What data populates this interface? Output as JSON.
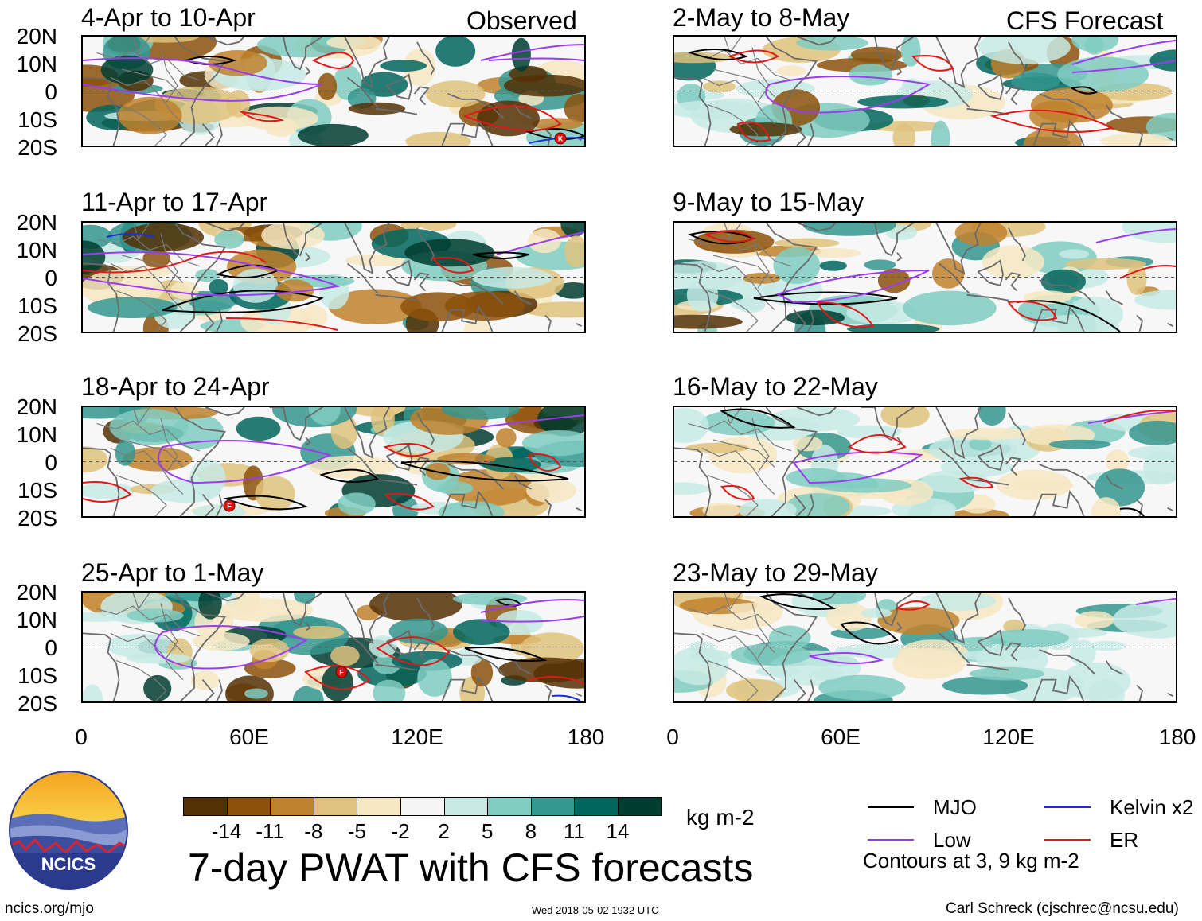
{
  "figure": {
    "observed_label": "Observed",
    "forecast_label": "CFS Forecast",
    "main_title": "7-day PWAT with CFS forecasts",
    "units": "kg m-2",
    "site_url": "ncics.org/mjo",
    "timestamp": "Wed 2018-05-02 1932 UTC",
    "author": "Carl Schreck (cjschrec@ncsu.edu)",
    "contour_note": "Contours at 3, 9 kg m-2",
    "logo_text": "NCICS"
  },
  "panels_left": [
    {
      "period": "4-Apr to 10-Apr"
    },
    {
      "period": "11-Apr to 17-Apr"
    },
    {
      "period": "18-Apr to 24-Apr"
    },
    {
      "period": "25-Apr to 1-May"
    }
  ],
  "panels_right": [
    {
      "period": "2-May to 8-May"
    },
    {
      "period": "9-May to 15-May"
    },
    {
      "period": "16-May to 22-May"
    },
    {
      "period": "23-May to 29-May"
    }
  ],
  "y_ticks": [
    "20N",
    "10N",
    "0",
    "10S",
    "20S"
  ],
  "x_ticks": [
    "0",
    "60E",
    "120E",
    "180"
  ],
  "colorbar": {
    "labels": [
      "-14",
      "-11",
      "-8",
      "-5",
      "-2",
      "2",
      "5",
      "8",
      "11",
      "14"
    ],
    "colors": [
      "#543005",
      "#8c510a",
      "#bf812d",
      "#dfc27d",
      "#f6e8c3",
      "#f5f5f5",
      "#c7eae5",
      "#80cdc1",
      "#35978f",
      "#01665e",
      "#003c30"
    ]
  },
  "legend": [
    {
      "label": "MJO",
      "color": "#000000"
    },
    {
      "label": "Kelvin x2",
      "color": "#1a2fd6"
    },
    {
      "label": "Low",
      "color": "#9b3bf0"
    },
    {
      "label": "ER",
      "color": "#e01818"
    }
  ],
  "storm_markers": [
    {
      "panel": "4-Apr to 10-Apr",
      "letter": "K"
    },
    {
      "panel": "18-Apr to 24-Apr",
      "letter": "F"
    },
    {
      "panel": "25-Apr to 1-May",
      "letter": "F"
    }
  ]
}
